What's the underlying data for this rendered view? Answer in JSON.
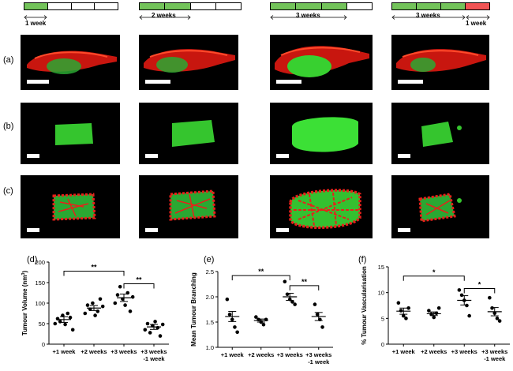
{
  "timelines": [
    {
      "segments": [
        "green",
        "white",
        "white",
        "white"
      ],
      "labels": [
        "1 week"
      ]
    },
    {
      "segments": [
        "green",
        "green",
        "white",
        "white"
      ],
      "labels": [
        "2 weeks"
      ]
    },
    {
      "segments": [
        "green",
        "green",
        "green",
        "white"
      ],
      "labels": [
        "3 weeks"
      ]
    },
    {
      "segments": [
        "green",
        "green",
        "green",
        "red"
      ],
      "labels": [
        "3 weeks",
        "1 week"
      ]
    }
  ],
  "row_labels": [
    "(a)",
    "(b)",
    "(c)"
  ],
  "plot_labels": [
    "(d)",
    "(e)",
    "(f)"
  ],
  "colors": {
    "green": "#73c35a",
    "red": "#f15454",
    "vessel_red": "#e8201a",
    "tumour_green": "#3dd03a"
  },
  "chart_data": [
    {
      "type": "scatter",
      "title": "",
      "ylabel": "Tumour Volume (nm³)",
      "ylabel_base": "Tumour Volume (nm",
      "ylabel_sup": "3",
      "ylabel_end": ")",
      "categories": [
        "+1 week",
        "+2 weeks",
        "+3 weeks",
        "+3 weeks\n-1 week"
      ],
      "category_lines": [
        [
          "+1 week"
        ],
        [
          "+2 weeks"
        ],
        [
          "+3 weeks"
        ],
        [
          "+3 weeks",
          "-1 week"
        ]
      ],
      "ylim": [
        0,
        200
      ],
      "yticks": [
        "0",
        "50",
        "100",
        "150",
        "200"
      ],
      "ytick_values": [
        0,
        50,
        100,
        150,
        200
      ],
      "points": [
        [
          50,
          62,
          55,
          70,
          48,
          75,
          65,
          35
        ],
        [
          75,
          95,
          85,
          100,
          70,
          80,
          110,
          92
        ],
        [
          100,
          120,
          140,
          110,
          95,
          125,
          80,
          115
        ],
        [
          35,
          50,
          28,
          45,
          55,
          40,
          20,
          48
        ]
      ],
      "means": [
        60,
        88,
        113,
        42
      ],
      "sem": [
        7,
        6,
        9,
        6
      ],
      "significance": [
        {
          "from": 0,
          "to": 2,
          "label": "**",
          "y": 178
        },
        {
          "from": 2,
          "to": 3,
          "label": "**",
          "y": 147
        }
      ]
    },
    {
      "type": "scatter",
      "title": "",
      "ylabel": "Mean Tumour Branching",
      "categories": [
        "+1 week",
        "+2 weeks",
        "+3 weeks",
        "+3 weeks\n-1 week"
      ],
      "category_lines": [
        [
          "+1 week"
        ],
        [
          "+2 weeks"
        ],
        [
          "+3 weeks"
        ],
        [
          "+3 weeks",
          "-1 week"
        ]
      ],
      "ylim": [
        1.0,
        2.5
      ],
      "yticks": [
        "1.0",
        "1.5",
        "2.0",
        "2.5"
      ],
      "ytick_values": [
        1.0,
        1.5,
        2.0,
        2.5
      ],
      "points": [
        [
          1.95,
          1.65,
          1.55,
          1.4,
          1.3
        ],
        [
          1.6,
          1.55,
          1.5,
          1.45,
          1.55
        ],
        [
          2.3,
          2.05,
          1.95,
          1.9,
          1.85
        ],
        [
          1.85,
          1.65,
          1.55,
          1.4
        ]
      ],
      "means": [
        1.61,
        1.53,
        2.0,
        1.61
      ],
      "sem": [
        0.1,
        0.03,
        0.07,
        0.08
      ],
      "significance": [
        {
          "from": 0,
          "to": 2,
          "label": "**",
          "y": 2.42
        },
        {
          "from": 2,
          "to": 3,
          "label": "**",
          "y": 2.22
        }
      ]
    },
    {
      "type": "scatter",
      "title": "",
      "ylabel": "% Tumour Vascularisation",
      "categories": [
        "+1 week",
        "+2 weeks",
        "+3 weeks",
        "+3 weeks\n-1 week"
      ],
      "category_lines": [
        [
          "+1 week"
        ],
        [
          "+2 weeks"
        ],
        [
          "+3 weeks"
        ],
        [
          "+3 weeks",
          "-1 week"
        ]
      ],
      "ylim": [
        0,
        15
      ],
      "yticks": [
        "0",
        "5",
        "10",
        "15"
      ],
      "ytick_values": [
        0,
        5,
        10,
        15
      ],
      "points": [
        [
          8.0,
          6.5,
          5.5,
          5.0,
          7.0
        ],
        [
          6.5,
          5.8,
          5.2,
          6.0,
          7.0
        ],
        [
          10.5,
          9.5,
          8.5,
          7.5,
          5.5
        ],
        [
          9.0,
          7.0,
          6.0,
          5.0,
          4.5
        ]
      ],
      "means": [
        6.4,
        5.9,
        8.5,
        6.3
      ],
      "sem": [
        0.6,
        0.35,
        0.9,
        0.8
      ],
      "significance": [
        {
          "from": 0,
          "to": 2,
          "label": "*",
          "y": 13.2
        },
        {
          "from": 2,
          "to": 3,
          "label": "*",
          "y": 10.8
        }
      ]
    }
  ]
}
